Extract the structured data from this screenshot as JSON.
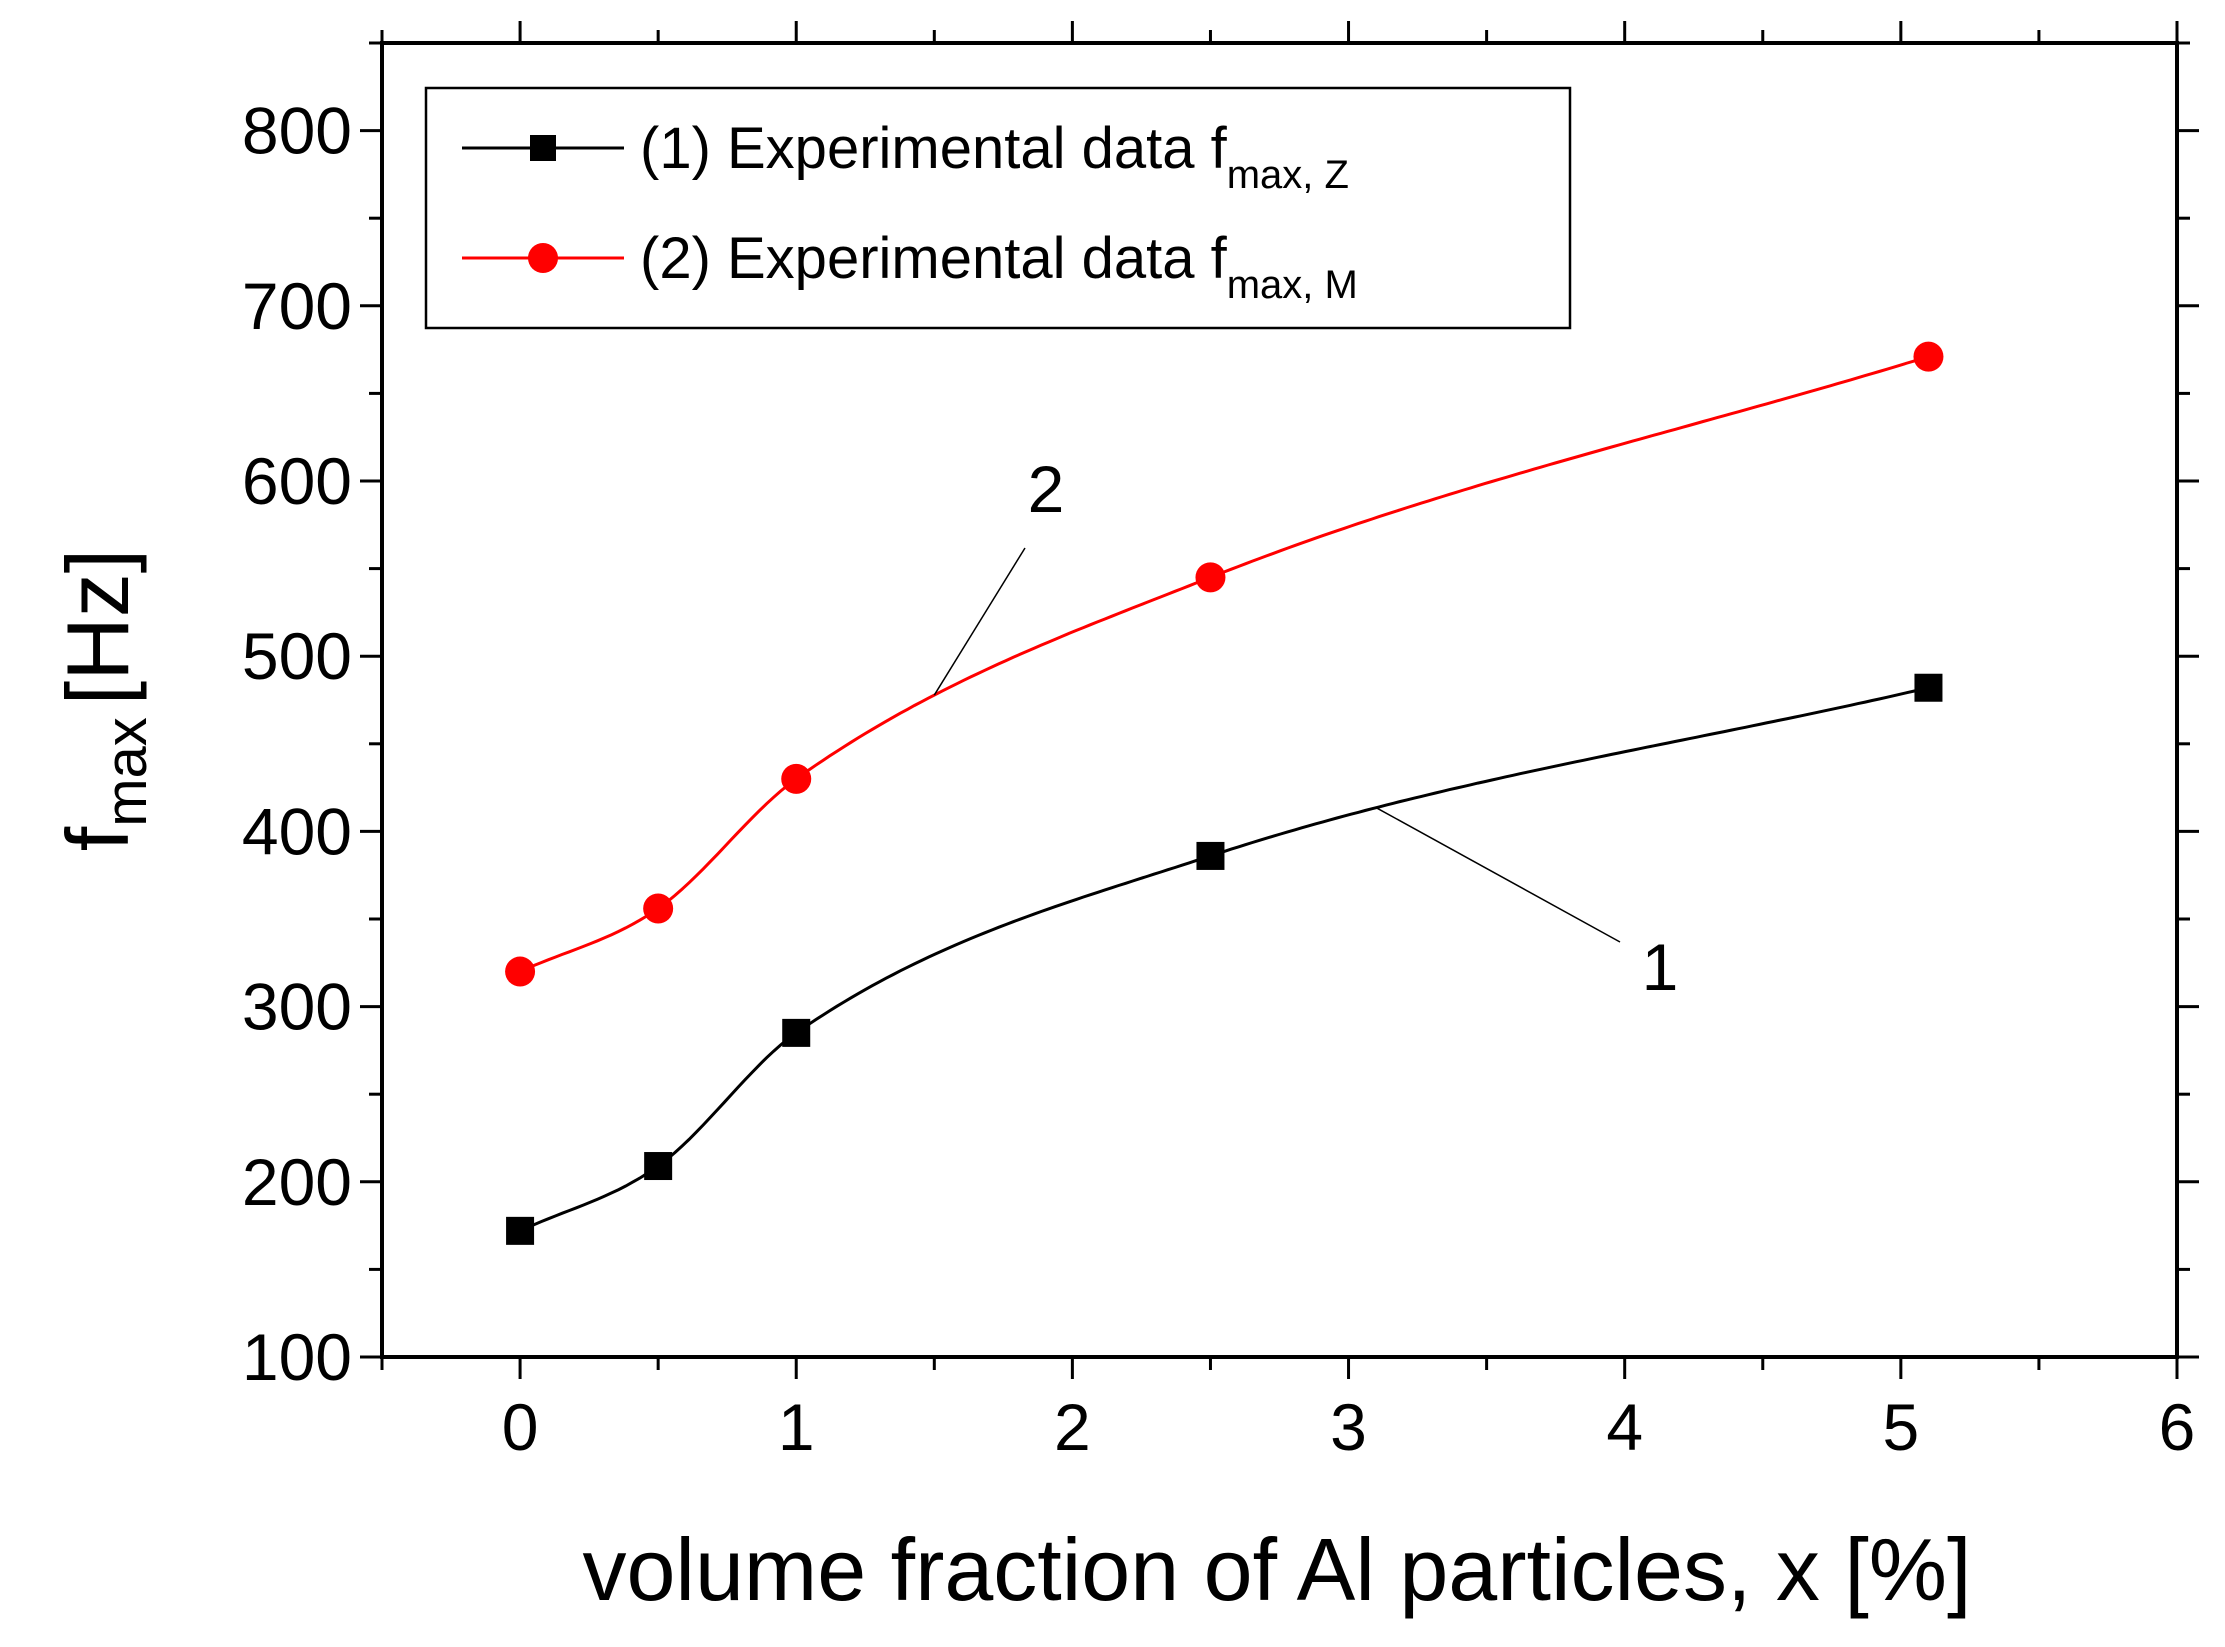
{
  "chart_data": {
    "type": "line",
    "title": "",
    "xlabel": "volume fraction of Al particles, x [%]",
    "ylabel_main": "f",
    "ylabel_sub": "max",
    "ylabel_unit": "[Hz]",
    "xlim": [
      -0.5,
      6
    ],
    "ylim": [
      100,
      850
    ],
    "x_ticks": [
      0,
      1,
      2,
      3,
      4,
      5,
      6
    ],
    "y_ticks": [
      100,
      200,
      300,
      400,
      500,
      600,
      700,
      800
    ],
    "grid": false,
    "legend_position": "top-left",
    "series": [
      {
        "name": "(1) Experimental data f",
        "name_sub": "max, Z",
        "curve_label": "1",
        "color": "#000000",
        "marker": "square",
        "x": [
          0,
          0.5,
          1,
          2.5,
          5.1
        ],
        "y": [
          172,
          209,
          285,
          386,
          482
        ]
      },
      {
        "name": "(2) Experimental data f",
        "name_sub": "max, M",
        "curve_label": "2",
        "color": "#ff0000",
        "marker": "circle",
        "x": [
          0,
          0.5,
          1,
          2.5,
          5.1
        ],
        "y": [
          320,
          356,
          430,
          545,
          671
        ]
      }
    ]
  }
}
